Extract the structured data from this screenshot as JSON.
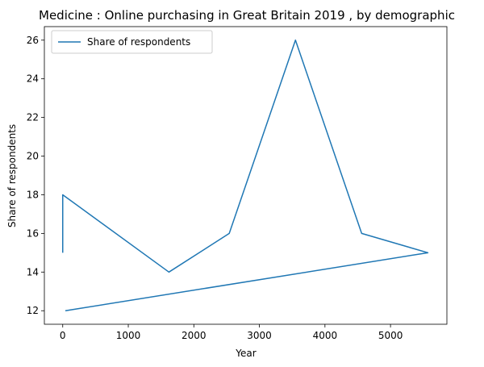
{
  "chart_data": {
    "type": "line",
    "title": "Medicine : Online purchasing in Great Britain 2019 , by demographic",
    "xlabel": "Year",
    "ylabel": "Share of respondents",
    "xlim": [
      -280,
      5860
    ],
    "ylim": [
      11.3,
      26.7
    ],
    "xticks": [
      0,
      1000,
      2000,
      3000,
      4000,
      5000
    ],
    "yticks": [
      12,
      14,
      16,
      18,
      20,
      22,
      24,
      26
    ],
    "grid": false,
    "legend_position": "upper left",
    "series": [
      {
        "name": "Share of respondents",
        "color": "#1f77b4",
        "x": [
          0,
          0,
          1620,
          2540,
          3550,
          4560,
          5570,
          40
        ],
        "y": [
          15,
          18,
          14,
          16,
          26,
          16,
          15,
          12
        ]
      }
    ]
  }
}
